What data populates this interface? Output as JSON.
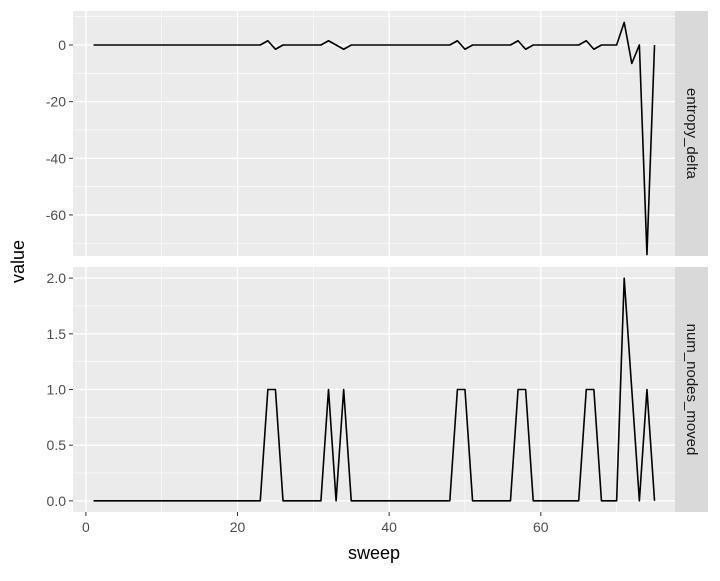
{
  "chart_data": {
    "type": "line",
    "xlabel": "sweep",
    "ylabel": "value",
    "xlim": [
      -1.7,
      77.7
    ],
    "x_ticks": [
      0,
      20,
      40,
      60
    ],
    "x_tick_labels": [
      "0",
      "20",
      "40",
      "60"
    ],
    "grid": true,
    "legend": "none",
    "line_color": "#000000",
    "panel_background": "#ebebeb",
    "strip_background": "#d9d9d9",
    "panels": [
      {
        "strip_label": "entropy_delta",
        "ylim": [
          -74.5,
          12
        ],
        "y_ticks": [
          0,
          -20,
          -40,
          -60
        ],
        "y_tick_labels": [
          "0",
          "-20",
          "-40",
          "-60"
        ],
        "y_minor_ticks": [
          10,
          -10,
          -30,
          -50,
          -70
        ],
        "x": [
          1,
          2,
          3,
          4,
          5,
          6,
          7,
          8,
          9,
          10,
          11,
          12,
          13,
          14,
          15,
          16,
          17,
          18,
          19,
          20,
          21,
          22,
          23,
          24,
          25,
          26,
          27,
          28,
          29,
          30,
          31,
          32,
          33,
          34,
          35,
          36,
          37,
          38,
          39,
          40,
          41,
          42,
          43,
          44,
          45,
          46,
          47,
          48,
          49,
          50,
          51,
          52,
          53,
          54,
          55,
          56,
          57,
          58,
          59,
          60,
          61,
          62,
          63,
          64,
          65,
          66,
          67,
          68,
          69,
          70,
          71,
          72,
          73,
          74,
          75
        ],
        "y": [
          0,
          0,
          0,
          0,
          0,
          0,
          0,
          0,
          0,
          0,
          0,
          0,
          0,
          0,
          0,
          0,
          0,
          0,
          0,
          0,
          0,
          0,
          0,
          1.5,
          -1.5,
          0,
          0,
          0,
          0,
          0,
          0,
          1.5,
          0,
          -1.5,
          0,
          0,
          0,
          0,
          0,
          0,
          0,
          0,
          0,
          0,
          0,
          0,
          0,
          0,
          1.5,
          -1.5,
          0,
          0,
          0,
          0,
          0,
          0,
          1.5,
          -1.5,
          0,
          0,
          0,
          0,
          0,
          0,
          0,
          1.5,
          -1.5,
          0,
          0,
          0,
          8,
          -6.5,
          0,
          -74,
          0
        ]
      },
      {
        "strip_label": "num_nodes_moved",
        "ylim": [
          -0.1,
          2.1
        ],
        "y_ticks": [
          0,
          0.5,
          1,
          1.5,
          2
        ],
        "y_tick_labels": [
          "0.0",
          "0.5",
          "1.0",
          "1.5",
          "2.0"
        ],
        "y_minor_ticks": [
          0.25,
          0.75,
          1.25,
          1.75
        ],
        "x": [
          1,
          2,
          3,
          4,
          5,
          6,
          7,
          8,
          9,
          10,
          11,
          12,
          13,
          14,
          15,
          16,
          17,
          18,
          19,
          20,
          21,
          22,
          23,
          24,
          25,
          26,
          27,
          28,
          29,
          30,
          31,
          32,
          33,
          34,
          35,
          36,
          37,
          38,
          39,
          40,
          41,
          42,
          43,
          44,
          45,
          46,
          47,
          48,
          49,
          50,
          51,
          52,
          53,
          54,
          55,
          56,
          57,
          58,
          59,
          60,
          61,
          62,
          63,
          64,
          65,
          66,
          67,
          68,
          69,
          70,
          71,
          72,
          73,
          74,
          75
        ],
        "y": [
          0,
          0,
          0,
          0,
          0,
          0,
          0,
          0,
          0,
          0,
          0,
          0,
          0,
          0,
          0,
          0,
          0,
          0,
          0,
          0,
          0,
          0,
          0,
          1,
          1,
          0,
          0,
          0,
          0,
          0,
          0,
          1,
          0,
          1,
          0,
          0,
          0,
          0,
          0,
          0,
          0,
          0,
          0,
          0,
          0,
          0,
          0,
          0,
          1,
          1,
          0,
          0,
          0,
          0,
          0,
          0,
          1,
          1,
          0,
          0,
          0,
          0,
          0,
          0,
          0,
          1,
          1,
          0,
          0,
          0,
          2,
          1,
          0,
          1,
          0
        ]
      }
    ]
  }
}
